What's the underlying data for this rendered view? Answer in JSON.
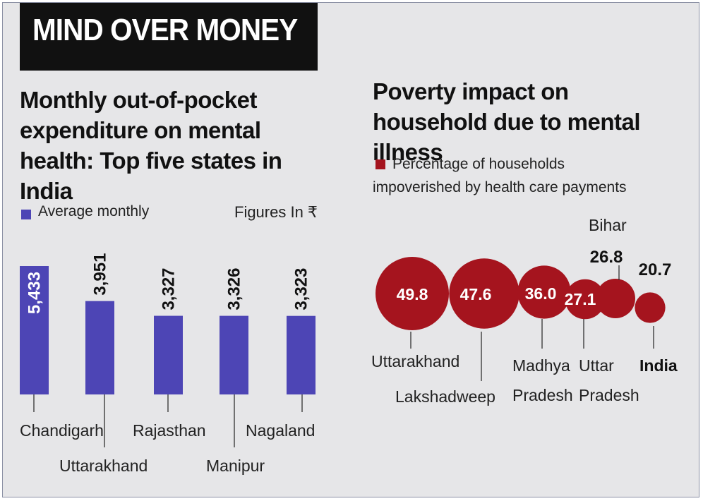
{
  "banner": {
    "title": "MIND OVER MONEY"
  },
  "colors": {
    "bar": "#4d45b5",
    "bubble": "#a5141e",
    "banner_bg": "#111111",
    "panel_bg": "#e6e6e8"
  },
  "chart_data": [
    {
      "type": "bar",
      "title": "Monthly out-of-pocket expenditure on mental health: Top five states in India",
      "legend": "Average monthly",
      "unit_note": "Figures In ₹",
      "categories": [
        "Chandigarh",
        "Uttarakhand",
        "Rajasthan",
        "Manipur",
        "Nagaland"
      ],
      "series": [
        {
          "name": "Average monthly",
          "values": [
            5433,
            3951,
            3327,
            3326,
            3323
          ]
        }
      ],
      "value_labels": [
        "5,433",
        "3,951",
        "3,327",
        "3,326",
        "3,323"
      ]
    },
    {
      "type": "scatter",
      "title": "Poverty impact on household due to mental illness",
      "legend": "Percentage of households impoverished by health care payments",
      "categories": [
        "Uttarakhand",
        "Lakshadweep",
        "Madhya Pradesh",
        "Uttar Pradesh",
        "Bihar",
        "India"
      ],
      "series": [
        {
          "name": "Percentage of households impoverished by health care payments",
          "values": [
            49.8,
            47.6,
            36.0,
            27.1,
            26.8,
            20.7
          ]
        }
      ],
      "value_labels": [
        "49.8",
        "47.6",
        "36.0",
        "27.1",
        "26.8",
        "20.7"
      ]
    }
  ]
}
